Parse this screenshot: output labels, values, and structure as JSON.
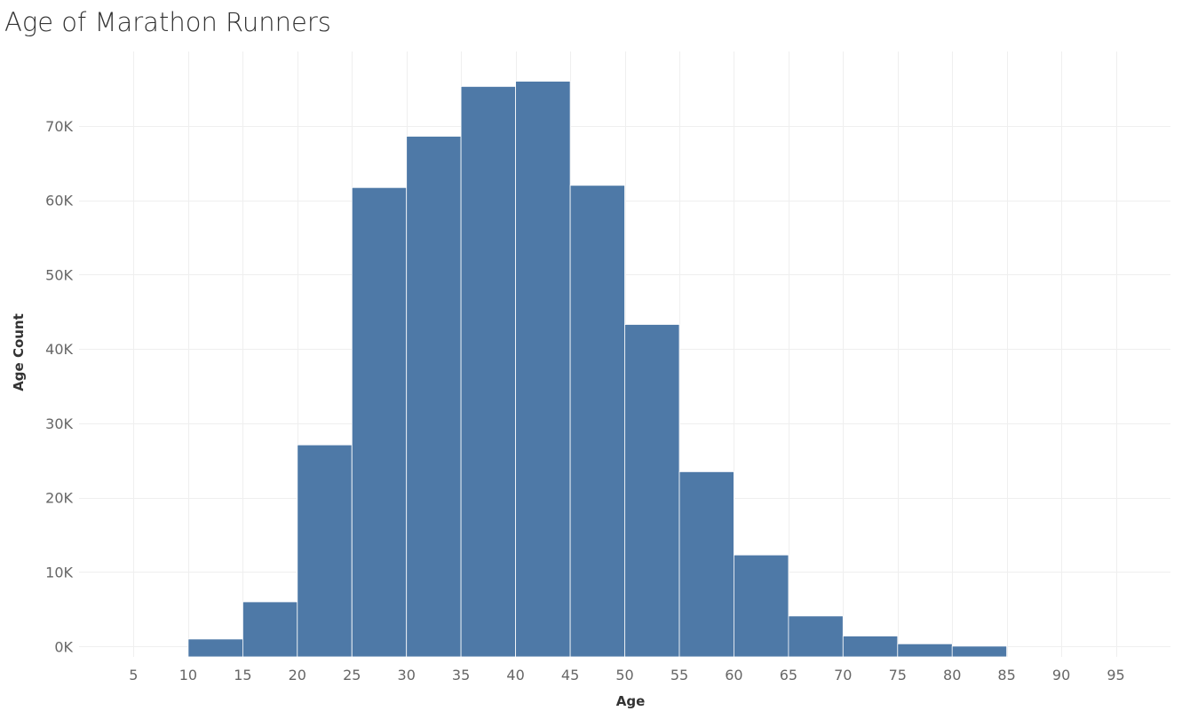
{
  "chart_data": {
    "type": "bar",
    "title": "Age of Marathon Runners",
    "xlabel": "Age",
    "ylabel": "Age Count",
    "bin_width": 5,
    "categories": [
      "10",
      "15",
      "20",
      "25",
      "30",
      "35",
      "40",
      "45",
      "50",
      "55",
      "60",
      "65",
      "70",
      "75",
      "80"
    ],
    "values": [
      1000,
      6000,
      27100,
      61700,
      68600,
      75300,
      76000,
      62000,
      43300,
      23500,
      12300,
      4100,
      1400,
      350,
      50
    ],
    "xlim": [
      0,
      100
    ],
    "ylim": [
      -1400,
      80000
    ],
    "x_ticks": [
      5,
      10,
      15,
      20,
      25,
      30,
      35,
      40,
      45,
      50,
      55,
      60,
      65,
      70,
      75,
      80,
      85,
      90,
      95
    ],
    "y_ticks": [
      0,
      10000,
      20000,
      30000,
      40000,
      50000,
      60000,
      70000
    ],
    "y_tick_labels": [
      "0K",
      "10K",
      "20K",
      "30K",
      "40K",
      "50K",
      "60K",
      "70K"
    ],
    "grid": true,
    "colors": {
      "bar": "#4e79a7",
      "grid": "#efefef",
      "tick_label": "#666666"
    }
  }
}
